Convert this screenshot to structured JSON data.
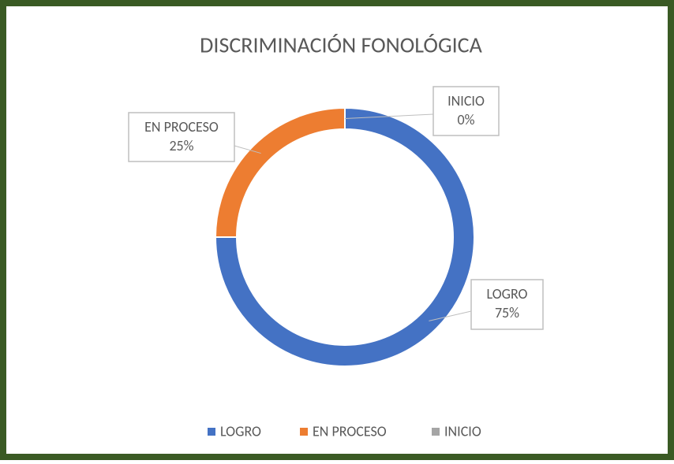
{
  "chart_data": {
    "type": "doughnut",
    "title": "DISCRIMINACIÓN FONOLÓGICA",
    "categories": [
      "LOGRO",
      "EN PROCESO",
      "INICIO"
    ],
    "values": [
      75,
      25,
      0
    ],
    "value_labels": [
      "75%",
      "25%",
      "0%"
    ],
    "colors": [
      "#4472c4",
      "#ed7d31",
      "#a5a5a5"
    ],
    "legend": "bottom"
  }
}
